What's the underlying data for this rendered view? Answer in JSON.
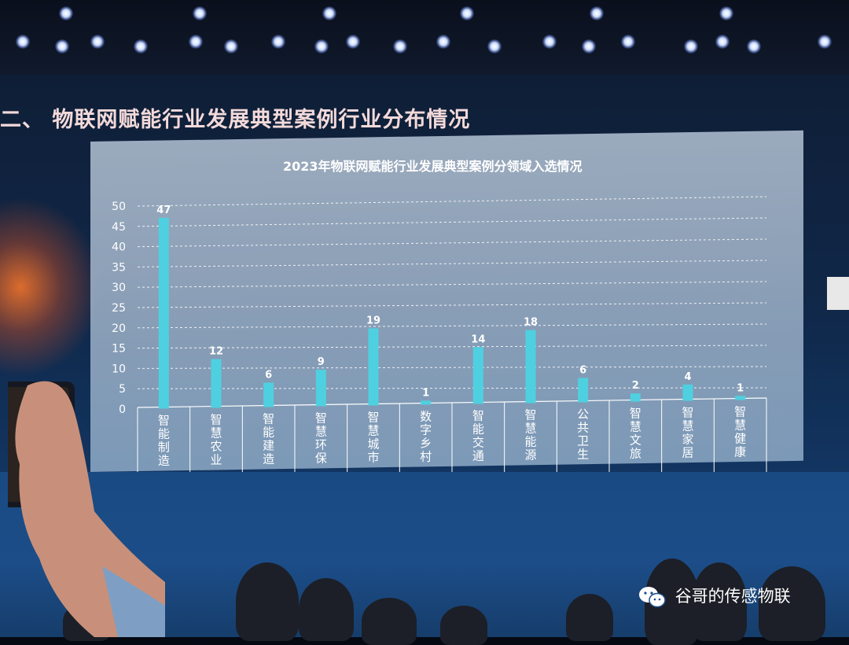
{
  "slide": {
    "title": "二、 物联网赋能行业发展典型案例行业分布情况",
    "watermark": "谷哥的传感物联"
  },
  "chart_data": {
    "type": "bar",
    "title": "2023年物联网赋能行业发展典型案例分领域入选情况",
    "categories": [
      "智能制造",
      "智慧农业",
      "智能建造",
      "智慧环保",
      "智慧城市",
      "数字乡村",
      "智能交通",
      "智慧能源",
      "公共卫生",
      "智慧文旅",
      "智慧家居",
      "智慧健康"
    ],
    "values": [
      47,
      12,
      6,
      9,
      19,
      1,
      14,
      18,
      6,
      2,
      4,
      1
    ],
    "ylim": [
      0,
      50
    ],
    "yticks": [
      0,
      5,
      10,
      15,
      20,
      25,
      30,
      35,
      40,
      45,
      50
    ],
    "grid": true,
    "bar_color": "#4fd0e0"
  },
  "colors": {
    "title_text": "#f3dada",
    "bar": "#4fd0e0",
    "stage_blue": "#1c4d88"
  }
}
